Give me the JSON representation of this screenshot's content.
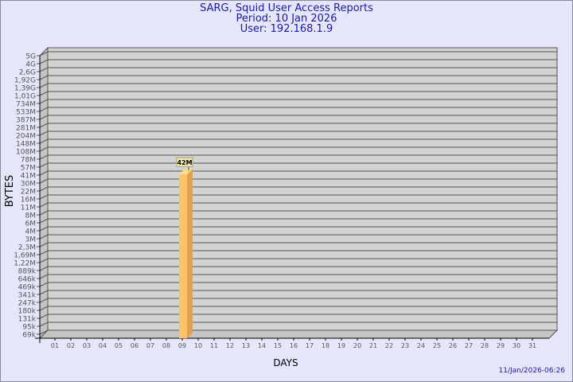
{
  "chart_data": {
    "type": "bar",
    "title": "SARG, Squid User Access Reports",
    "subtitle_period": "Period: 10 Jan 2026",
    "subtitle_user": "User: 192.168.1.9",
    "xlabel": "DAYS",
    "ylabel": "BYTES",
    "y_scale": "log",
    "y_tick_labels": [
      "69k",
      "95k",
      "131k",
      "180k",
      "247k",
      "341k",
      "469k",
      "646k",
      "889k",
      "1,22M",
      "1,69M",
      "2,3M",
      "3M",
      "4M",
      "6M",
      "8M",
      "11M",
      "16M",
      "22M",
      "30M",
      "41M",
      "57M",
      "78M",
      "108M",
      "148M",
      "204M",
      "281M",
      "387M",
      "533M",
      "734M",
      "1,01G",
      "1,39G",
      "1,92G",
      "2,6G",
      "4G",
      "5G"
    ],
    "categories": [
      "01",
      "02",
      "03",
      "04",
      "05",
      "06",
      "07",
      "08",
      "09",
      "10",
      "11",
      "12",
      "13",
      "14",
      "15",
      "16",
      "17",
      "18",
      "19",
      "20",
      "21",
      "22",
      "23",
      "24",
      "25",
      "26",
      "27",
      "28",
      "29",
      "30",
      "31"
    ],
    "values": [
      null,
      null,
      null,
      null,
      null,
      null,
      null,
      null,
      null,
      42000000,
      null,
      null,
      null,
      null,
      null,
      null,
      null,
      null,
      null,
      null,
      null,
      null,
      null,
      null,
      null,
      null,
      null,
      null,
      null,
      null,
      null
    ],
    "data_labels": {
      "10": "42M"
    },
    "grid": true,
    "bar_color": "#ffc266",
    "plot_background": "#d3d3d3"
  },
  "footer": {
    "timestamp": "11/Jan/2026-06:26"
  }
}
